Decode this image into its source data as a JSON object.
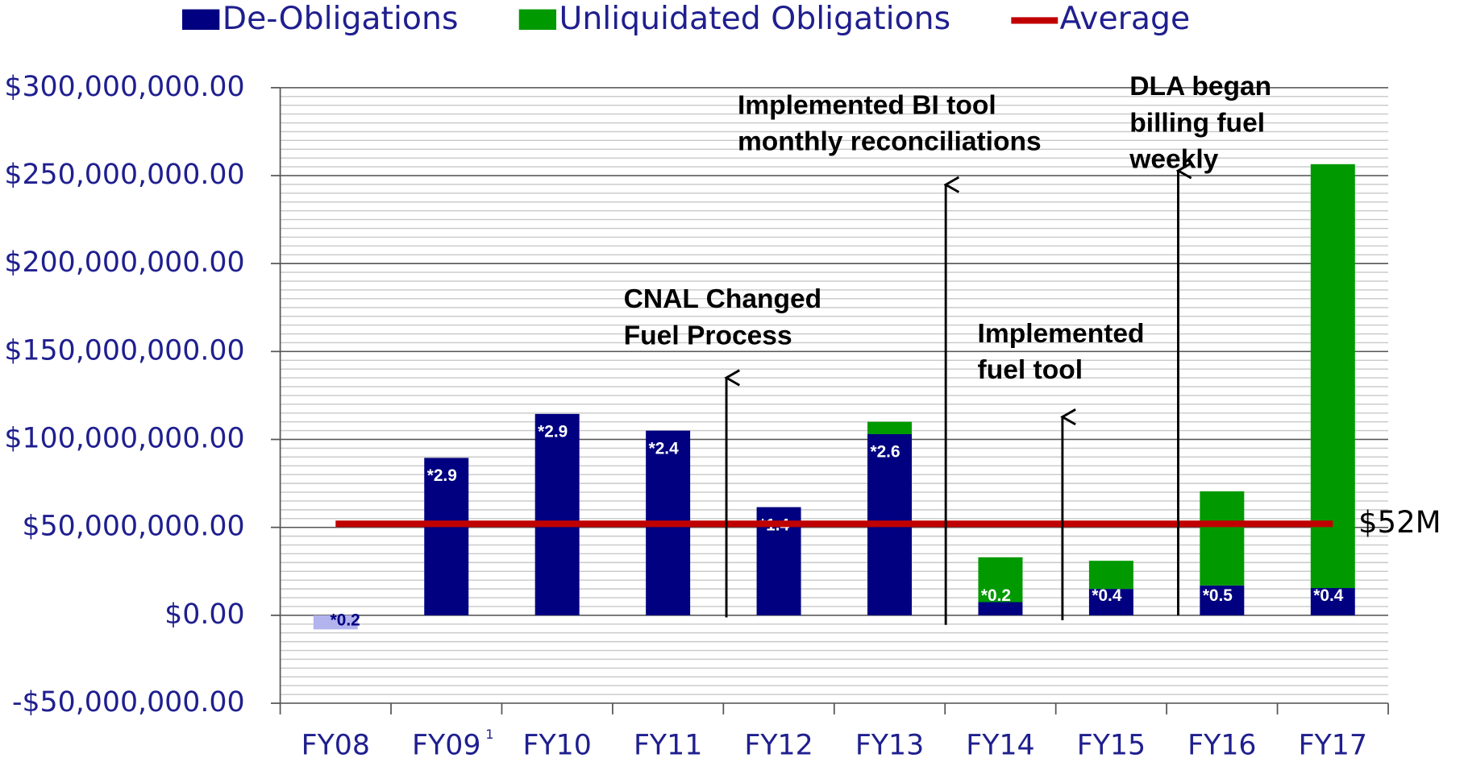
{
  "chart_data": {
    "type": "stacked_bar",
    "categories": [
      "FY08",
      "FY09",
      "FY10",
      "FY11",
      "FY12",
      "FY13",
      "FY14",
      "FY15",
      "FY16",
      "FY17"
    ],
    "category_footnotes": [
      null,
      "1",
      null,
      null,
      null,
      null,
      null,
      null,
      null,
      null
    ],
    "series": [
      {
        "name": "De-Obligations",
        "color": "#000080",
        "point_colors": [
          "#b3b3ee",
          null,
          null,
          null,
          null,
          null,
          null,
          null,
          null,
          null
        ],
        "values": [
          -8000000,
          89500000,
          114500000,
          105000000,
          61500000,
          103000000,
          7500000,
          15000000,
          17000000,
          15500000
        ],
        "notes": [
          "*0.2",
          "*2.9",
          "*2.9",
          "*2.4",
          "*1.4",
          "*2.6",
          "*0.2",
          "*0.4",
          "*0.5",
          "*0.4"
        ]
      },
      {
        "name": "Unliquidated Obligations",
        "color": "#009900",
        "values": [
          0,
          0,
          0,
          0,
          0,
          7000000,
          25500000,
          16000000,
          53500000,
          241000000
        ]
      }
    ],
    "average": {
      "name": "Average",
      "color": "#c00000",
      "value": 52000000,
      "label": "$52M"
    },
    "ylim": [
      -50000000,
      300000000
    ],
    "yticks": [
      {
        "value": -50000000,
        "label": "-$50,000,000.00"
      },
      {
        "value": 0,
        "label": "$0.00"
      },
      {
        "value": 50000000,
        "label": "$50,000,000.00"
      },
      {
        "value": 100000000,
        "label": "$100,000,000.00"
      },
      {
        "value": 150000000,
        "label": "$150,000,000.00"
      },
      {
        "value": 200000000,
        "label": "$200,000,000.00"
      },
      {
        "value": 250000000,
        "label": "$250,000,000.00"
      },
      {
        "value": 300000000,
        "label": "$300,000,000.00"
      }
    ],
    "minor_ystep": 5000000,
    "grid": true,
    "annotations": [
      {
        "lines": [
          "CNAL Changed",
          "Fuel Process"
        ]
      },
      {
        "lines": [
          "Implemented BI tool",
          "monthly reconciliations"
        ]
      },
      {
        "lines": [
          "Implemented",
          "fuel tool"
        ]
      },
      {
        "lines": [
          "DLA began",
          "billing fuel",
          "weekly"
        ]
      }
    ]
  }
}
